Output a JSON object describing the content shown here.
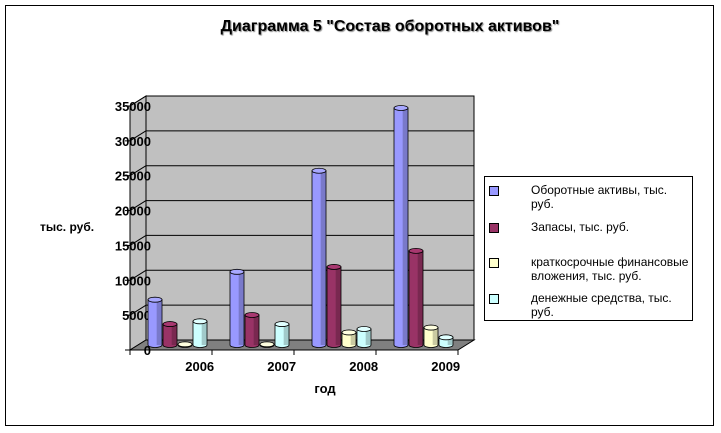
{
  "chart_data": {
    "type": "bar",
    "title": "Диаграмма 5   \"Состав оборотных активов\"",
    "xlabel": "год",
    "ylabel": "тыс. руб.",
    "categories": [
      "2006",
      "2007",
      "2008",
      "2009"
    ],
    "ylim": [
      0,
      35000
    ],
    "yticks": [
      "0",
      "5000",
      "10000",
      "15000",
      "20000",
      "25000",
      "30000",
      "35000"
    ],
    "grid": true,
    "legend_position": "right",
    "series": [
      {
        "name": "Оборотные  активы, тыс. руб.",
        "values": [
          6500,
          10500,
          25000,
          34000
        ],
        "color": "#9999ff"
      },
      {
        "name": "Запасы, тыс. руб.",
        "values": [
          3000,
          4300,
          11200,
          13500
        ],
        "color": "#993366"
      },
      {
        "name": "краткосрочные  финансовые  вложения, тыс. руб.",
        "values": [
          100,
          100,
          1800,
          2500
        ],
        "color": "#ffffcc"
      },
      {
        "name": "денежные  средства, тыс. руб.",
        "values": [
          3400,
          3000,
          2300,
          1100
        ],
        "color": "#ccffff"
      }
    ]
  }
}
